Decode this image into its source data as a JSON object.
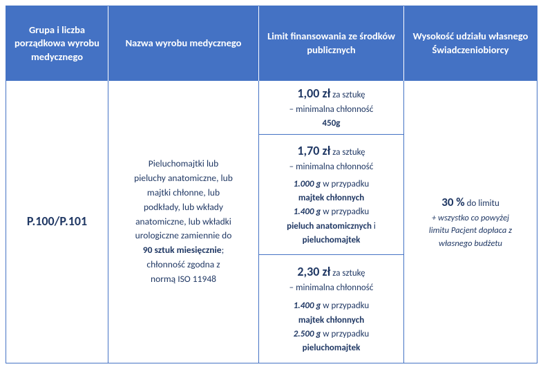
{
  "headers": {
    "h1": "Grupa i liczba porządkowa wyrobu medycznego",
    "h2": "Nazwa wyrobu medycznego",
    "h3": "Limit finansowania ze środków publicznych",
    "h4": "Wysokość udziału własnego Świadczeniobiorcy"
  },
  "code": "P.100/P.101",
  "desc": {
    "l1": "Pieluchomajtki lub",
    "l2": "pieluchy anatomiczne, lub",
    "l3": "majtki chłonne, lub",
    "l4": "podkłady, lub wkłady",
    "l5": "anatomiczne, lub wkładki",
    "l6": "urologiczne zamiennie do",
    "l7a": "90 sztuk miesięcznie",
    "l7b": ";",
    "l8": "chłonność zgodna z",
    "l9": "normą ISO 11948"
  },
  "limit1": {
    "price": "1,00 zł",
    "per": " za sztukę",
    "min": "– minimalna chłonność",
    "g": "450g"
  },
  "limit2": {
    "price": "1,70 zł",
    "per": " za sztukę",
    "min": "– minimalna chłonność",
    "g1": "1.000 g",
    "t1": " w przypadku",
    "p1": "majtek chłonnych",
    "g2": "1.400 g",
    "t2": " w przypadku",
    "p2a": "pieluch anatomicznych",
    "p2b": " i",
    "p3": "pieluchomajtek"
  },
  "limit3": {
    "price": "2,30 zł",
    "per": " za sztukę",
    "min": "– minimalna chłonność",
    "g1": "1.400 g",
    "t1": " w przypadku",
    "p1": "majtek chłonnych",
    "g2": "2.500 g",
    "t2": " w przypadku",
    "p2": "pieluchomajtek"
  },
  "share": {
    "pct": "30 %",
    "tolimit": " do limitu",
    "n1": "+ wszystko co powyżej",
    "n2": "limitu Pacjent dopłaca z",
    "n3": "własnego budżetu"
  }
}
